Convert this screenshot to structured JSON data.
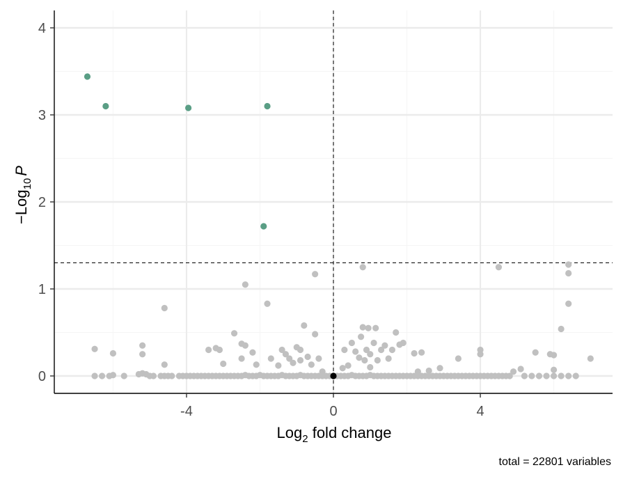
{
  "chart_data": {
    "type": "scatter",
    "title": "",
    "xlabel": {
      "base": "Log",
      "sub": "2",
      "rest": " fold change"
    },
    "ylabel": {
      "prefix": "−Log",
      "sub": "10",
      "var": "P"
    },
    "xlim": [
      -7.6,
      7.6
    ],
    "ylim": [
      -0.2,
      4.2
    ],
    "x_ticks": [
      {
        "value": -4,
        "label": "-4"
      },
      {
        "value": 0,
        "label": "0"
      },
      {
        "value": 4,
        "label": "4"
      }
    ],
    "y_ticks": [
      {
        "value": 0,
        "label": "0"
      },
      {
        "value": 1,
        "label": "1"
      },
      {
        "value": 2,
        "label": "2"
      },
      {
        "value": 3,
        "label": "3"
      },
      {
        "value": 4,
        "label": "4"
      }
    ],
    "cutoff_lines": {
      "x": 0,
      "y": 1.3
    },
    "caption": "total = 22801 variables",
    "colors": {
      "significant": "#5a9e85",
      "ns": "#c0c0c0",
      "zero": "#000000",
      "grid_major": "#ebebeb",
      "grid_minor": "#f5f5f5"
    },
    "series": [
      {
        "color_key": "significant",
        "points": [
          [
            -6.7,
            3.44
          ],
          [
            -6.2,
            3.1
          ],
          [
            -3.95,
            3.08
          ],
          [
            -1.8,
            3.1
          ],
          [
            -1.9,
            1.72
          ]
        ]
      },
      {
        "color_key": "ns",
        "points": [
          [
            0.8,
            1.25
          ],
          [
            4.5,
            1.25
          ],
          [
            6.4,
            1.28
          ],
          [
            6.4,
            1.18
          ],
          [
            6.4,
            0.83
          ],
          [
            6.2,
            0.54
          ],
          [
            -0.5,
            1.17
          ],
          [
            -2.4,
            1.05
          ],
          [
            -1.8,
            0.83
          ],
          [
            -4.6,
            0.78
          ],
          [
            -0.8,
            0.58
          ],
          [
            -0.5,
            0.48
          ],
          [
            0.8,
            0.56
          ],
          [
            0.95,
            0.55
          ],
          [
            1.15,
            0.55
          ],
          [
            1.7,
            0.5
          ],
          [
            0.75,
            0.45
          ],
          [
            -2.7,
            0.49
          ],
          [
            -2.5,
            0.37
          ],
          [
            -2.4,
            0.35
          ],
          [
            -3.2,
            0.32
          ],
          [
            -3.1,
            0.3
          ],
          [
            -3.4,
            0.3
          ],
          [
            -5.2,
            0.35
          ],
          [
            -6.5,
            0.31
          ],
          [
            -6.0,
            0.26
          ],
          [
            -5.2,
            0.25
          ],
          [
            -2.2,
            0.27
          ],
          [
            -2.5,
            0.2
          ],
          [
            -1.7,
            0.2
          ],
          [
            -1.4,
            0.3
          ],
          [
            -1.3,
            0.25
          ],
          [
            -1.2,
            0.2
          ],
          [
            -1.0,
            0.33
          ],
          [
            -0.9,
            0.3
          ],
          [
            -1.1,
            0.15
          ],
          [
            -0.9,
            0.18
          ],
          [
            -0.7,
            0.22
          ],
          [
            -0.6,
            0.13
          ],
          [
            -3.0,
            0.14
          ],
          [
            -2.1,
            0.13
          ],
          [
            -1.5,
            0.12
          ],
          [
            -0.4,
            0.2
          ],
          [
            -0.3,
            0.05
          ],
          [
            -4.6,
            0.13
          ],
          [
            0.3,
            0.3
          ],
          [
            0.5,
            0.38
          ],
          [
            0.6,
            0.28
          ],
          [
            0.7,
            0.21
          ],
          [
            0.9,
            0.3
          ],
          [
            1.0,
            0.25
          ],
          [
            1.1,
            0.38
          ],
          [
            1.3,
            0.3
          ],
          [
            1.4,
            0.35
          ],
          [
            1.6,
            0.3
          ],
          [
            1.8,
            0.36
          ],
          [
            1.9,
            0.38
          ],
          [
            2.2,
            0.26
          ],
          [
            2.4,
            0.27
          ],
          [
            1.5,
            0.2
          ],
          [
            1.2,
            0.18
          ],
          [
            0.85,
            0.18
          ],
          [
            0.4,
            0.12
          ],
          [
            0.25,
            0.09
          ],
          [
            1.0,
            0.1
          ],
          [
            3.4,
            0.2
          ],
          [
            4.0,
            0.3
          ],
          [
            4.0,
            0.25
          ],
          [
            5.5,
            0.27
          ],
          [
            5.9,
            0.25
          ],
          [
            6.0,
            0.24
          ],
          [
            7.0,
            0.2
          ],
          [
            6.0,
            0.07
          ],
          [
            5.1,
            0.08
          ],
          [
            4.9,
            0.05
          ],
          [
            2.9,
            0.09
          ],
          [
            2.6,
            0.06
          ],
          [
            2.3,
            0.05
          ],
          [
            -6.5,
            0.0
          ],
          [
            -6.3,
            0.0
          ],
          [
            -6.1,
            0.0
          ],
          [
            -6.0,
            0.01
          ],
          [
            -5.7,
            0.0
          ],
          [
            -5.3,
            0.02
          ],
          [
            -5.2,
            0.03
          ],
          [
            -5.1,
            0.02
          ],
          [
            -5.0,
            0.0
          ],
          [
            -4.9,
            0.0
          ],
          [
            -4.7,
            0.0
          ],
          [
            -4.6,
            0.0
          ],
          [
            -4.5,
            0.0
          ],
          [
            -4.4,
            0.0
          ],
          [
            -4.2,
            0.0
          ],
          [
            -4.1,
            0.0
          ],
          [
            -4.0,
            0.0
          ],
          [
            -3.9,
            0.0
          ],
          [
            -3.8,
            0.0
          ],
          [
            -3.7,
            0.0
          ],
          [
            -3.6,
            0.0
          ],
          [
            -3.5,
            0.0
          ],
          [
            -3.4,
            0.0
          ],
          [
            -3.3,
            0.0
          ],
          [
            -3.2,
            0.0
          ],
          [
            -3.1,
            0.0
          ],
          [
            -3.0,
            0.0
          ],
          [
            -2.9,
            0.0
          ],
          [
            -2.8,
            0.0
          ],
          [
            -2.7,
            0.0
          ],
          [
            -2.6,
            0.0
          ],
          [
            -2.5,
            0.0
          ],
          [
            -2.4,
            0.01
          ],
          [
            -2.3,
            0.0
          ],
          [
            -2.2,
            0.0
          ],
          [
            -2.1,
            0.0
          ],
          [
            -2.0,
            0.01
          ],
          [
            -1.9,
            0.0
          ],
          [
            -1.8,
            0.0
          ],
          [
            -1.7,
            0.0
          ],
          [
            -1.6,
            0.0
          ],
          [
            -1.5,
            0.0
          ],
          [
            -1.4,
            0.01
          ],
          [
            -1.3,
            0.0
          ],
          [
            -1.2,
            0.0
          ],
          [
            -1.1,
            0.0
          ],
          [
            -1.0,
            0.0
          ],
          [
            -0.9,
            0.01
          ],
          [
            -0.8,
            0.0
          ],
          [
            -0.7,
            0.0
          ],
          [
            -0.6,
            0.0
          ],
          [
            -0.5,
            0.0
          ],
          [
            -0.4,
            0.0
          ],
          [
            -0.3,
            0.0
          ],
          [
            -0.2,
            0.0
          ],
          [
            -0.1,
            0.0
          ],
          [
            0.1,
            0.0
          ],
          [
            0.2,
            0.0
          ],
          [
            0.3,
            0.0
          ],
          [
            0.4,
            0.0
          ],
          [
            0.5,
            0.01
          ],
          [
            0.6,
            0.0
          ],
          [
            0.7,
            0.0
          ],
          [
            0.8,
            0.0
          ],
          [
            0.9,
            0.0
          ],
          [
            1.0,
            0.01
          ],
          [
            1.1,
            0.0
          ],
          [
            1.2,
            0.0
          ],
          [
            1.3,
            0.0
          ],
          [
            1.4,
            0.0
          ],
          [
            1.5,
            0.0
          ],
          [
            1.6,
            0.0
          ],
          [
            1.7,
            0.0
          ],
          [
            1.8,
            0.0
          ],
          [
            1.9,
            0.0
          ],
          [
            2.0,
            0.0
          ],
          [
            2.1,
            0.0
          ],
          [
            2.2,
            0.0
          ],
          [
            2.3,
            0.0
          ],
          [
            2.4,
            0.0
          ],
          [
            2.5,
            0.0
          ],
          [
            2.6,
            0.0
          ],
          [
            2.7,
            0.0
          ],
          [
            2.8,
            0.0
          ],
          [
            2.9,
            0.0
          ],
          [
            3.0,
            0.0
          ],
          [
            3.1,
            0.0
          ],
          [
            3.2,
            0.0
          ],
          [
            3.3,
            0.0
          ],
          [
            3.4,
            0.0
          ],
          [
            3.5,
            0.0
          ],
          [
            3.6,
            0.0
          ],
          [
            3.7,
            0.0
          ],
          [
            3.8,
            0.0
          ],
          [
            3.9,
            0.0
          ],
          [
            4.0,
            0.0
          ],
          [
            4.1,
            0.0
          ],
          [
            4.2,
            0.0
          ],
          [
            4.3,
            0.0
          ],
          [
            4.4,
            0.0
          ],
          [
            4.5,
            0.0
          ],
          [
            4.6,
            0.0
          ],
          [
            4.7,
            0.0
          ],
          [
            4.8,
            0.0
          ],
          [
            5.2,
            0.0
          ],
          [
            5.4,
            0.0
          ],
          [
            5.6,
            0.0
          ],
          [
            5.8,
            0.0
          ],
          [
            6.0,
            0.0
          ],
          [
            6.2,
            0.0
          ],
          [
            6.4,
            0.0
          ],
          [
            6.6,
            0.0
          ]
        ]
      },
      {
        "color_key": "zero",
        "points": [
          [
            0.0,
            0.0
          ]
        ]
      }
    ]
  }
}
